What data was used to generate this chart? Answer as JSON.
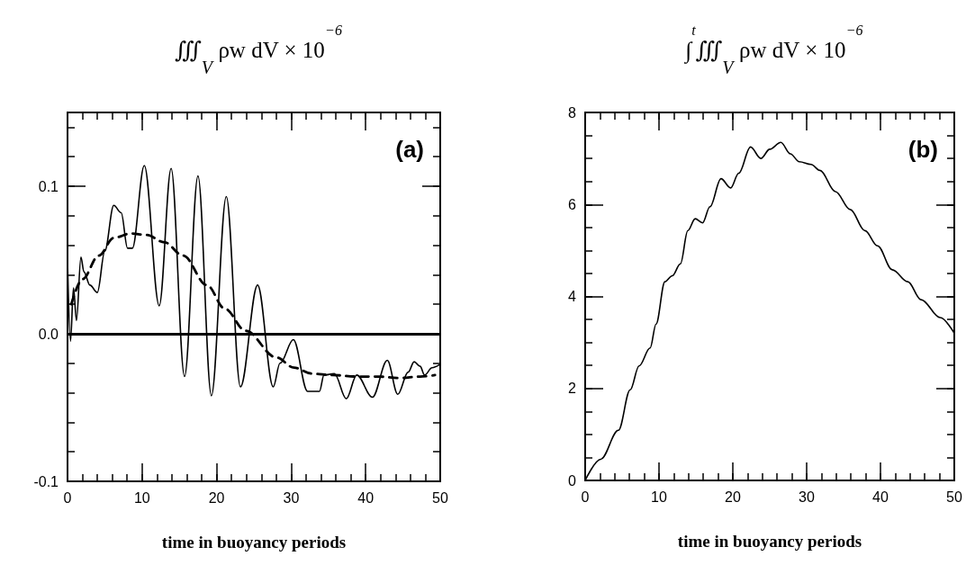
{
  "chart_data": [
    {
      "type": "line",
      "title": "∭$_{V}$ ρw dV × 10$^{−6}$",
      "xlabel": "time in buoyancy periods",
      "annotations": [
        "(a)"
      ],
      "marker": "none",
      "xlim": [
        0,
        50
      ],
      "xticks": [
        0,
        {
          "value": 2,
          "label": null
        },
        {
          "value": 4,
          "label": null
        },
        {
          "value": 6,
          "label": null
        },
        {
          "value": 8,
          "label": null
        },
        10,
        {
          "value": 12,
          "label": null
        },
        {
          "value": 14,
          "label": null
        },
        {
          "value": 16,
          "label": null
        },
        {
          "value": 18,
          "label": null
        },
        20,
        {
          "value": 22,
          "label": null
        },
        {
          "value": 24,
          "label": null
        },
        {
          "value": 26,
          "label": null
        },
        {
          "value": 28,
          "label": null
        },
        30,
        {
          "value": 32,
          "label": null
        },
        {
          "value": 34,
          "label": null
        },
        {
          "value": 36,
          "label": null
        },
        {
          "value": 38,
          "label": null
        },
        40,
        {
          "value": 42,
          "label": null
        },
        {
          "value": 44,
          "label": null
        },
        {
          "value": 46,
          "label": null
        },
        {
          "value": 48,
          "label": null
        },
        50
      ],
      "ylim": [
        -0.1,
        0.15
      ],
      "yticks": [
        -0.1,
        {
          "value": -0.08,
          "label": null
        },
        {
          "value": -0.06,
          "label": null
        },
        {
          "value": -0.04,
          "label": null
        },
        {
          "value": -0.02,
          "label": null
        },
        {
          "value": 0,
          "label": "0.0"
        },
        {
          "value": 0.02,
          "label": null
        },
        {
          "value": 0.04,
          "label": null
        },
        {
          "value": 0.06,
          "label": null
        },
        {
          "value": 0.08,
          "label": null
        },
        0.1,
        {
          "value": 0.12,
          "label": null
        },
        {
          "value": 0.14,
          "label": null
        }
      ],
      "ref_lines": [
        {
          "axis": "y",
          "value": 0,
          "color": "#000000"
        }
      ],
      "series": [
        {
          "color": "#000000",
          "line_style": "solid",
          "x": [
            0,
            0.4,
            0.8,
            1.2,
            1.8,
            2.2,
            3.0,
            4.0,
            5.0,
            6.2,
            7.2,
            8.05,
            8.7,
            10.3,
            12.3,
            13.9,
            15.7,
            17.5,
            19.3,
            21.3,
            23.2,
            25.5,
            27.6,
            28.5,
            30.3,
            32.2,
            33.8,
            34.4,
            35.8,
            37.4,
            38.8,
            40.9,
            42.9,
            44.3,
            45.7,
            46.5,
            47.3,
            47.9,
            48.9,
            49.9
          ],
          "values": [
            0.05,
            -0.005,
            0.031,
            0.009,
            0.052,
            0.042,
            0.033,
            0.028,
            0.056,
            0.087,
            0.082,
            0.058,
            0.058,
            0.114,
            0.019,
            0.112,
            -0.029,
            0.107,
            -0.042,
            0.093,
            -0.036,
            0.033,
            -0.036,
            -0.02,
            -0.004,
            -0.039,
            -0.039,
            -0.028,
            -0.027,
            -0.044,
            -0.028,
            -0.043,
            -0.018,
            -0.041,
            -0.026,
            -0.019,
            -0.022,
            -0.028,
            -0.023,
            -0.021
          ]
        },
        {
          "color": "#000000",
          "line_style": "dashed",
          "x": [
            0.5,
            2,
            4.2,
            6.2,
            8.5,
            10.6,
            13,
            15.5,
            18.7,
            21.1,
            23.9,
            28,
            30.4,
            32.8,
            35.6,
            38.9,
            41.7,
            44.5,
            47.3,
            49.3
          ],
          "values": [
            0.02,
            0.037,
            0.053,
            0.065,
            0.068,
            0.067,
            0.062,
            0.053,
            0.033,
            0.017,
            0.002,
            -0.016,
            -0.023,
            -0.027,
            -0.028,
            -0.029,
            -0.029,
            -0.03,
            -0.029,
            -0.028
          ]
        }
      ]
    },
    {
      "type": "line",
      "title": "∫$^{t}$∭$_{V}$ ρw dV × 10$^{−6}$",
      "xlabel": "time in buoyancy periods",
      "annotations": [
        "(b)"
      ],
      "marker": "none",
      "xlim": [
        0,
        50
      ],
      "xticks": [
        0,
        {
          "value": 2,
          "label": null
        },
        {
          "value": 4,
          "label": null
        },
        {
          "value": 6,
          "label": null
        },
        {
          "value": 8,
          "label": null
        },
        10,
        {
          "value": 12,
          "label": null
        },
        {
          "value": 14,
          "label": null
        },
        {
          "value": 16,
          "label": null
        },
        {
          "value": 18,
          "label": null
        },
        20,
        {
          "value": 22,
          "label": null
        },
        {
          "value": 24,
          "label": null
        },
        {
          "value": 26,
          "label": null
        },
        {
          "value": 28,
          "label": null
        },
        30,
        {
          "value": 32,
          "label": null
        },
        {
          "value": 34,
          "label": null
        },
        {
          "value": 36,
          "label": null
        },
        {
          "value": 38,
          "label": null
        },
        40,
        {
          "value": 42,
          "label": null
        },
        {
          "value": 44,
          "label": null
        },
        {
          "value": 46,
          "label": null
        },
        {
          "value": 48,
          "label": null
        },
        50
      ],
      "ylim": [
        0,
        8
      ],
      "yticks": [
        0,
        {
          "value": 0.5,
          "label": null
        },
        {
          "value": 1,
          "label": null
        },
        {
          "value": 1.5,
          "label": null
        },
        2,
        {
          "value": 2.5,
          "label": null
        },
        {
          "value": 3,
          "label": null
        },
        {
          "value": 3.5,
          "label": null
        },
        4,
        {
          "value": 4.5,
          "label": null
        },
        {
          "value": 5,
          "label": null
        },
        {
          "value": 5.5,
          "label": null
        },
        6,
        {
          "value": 6.5,
          "label": null
        },
        {
          "value": 7,
          "label": null
        },
        {
          "value": 7.5,
          "label": null
        },
        8
      ],
      "series": [
        {
          "color": "#000000",
          "line_style": "solid",
          "x": [
            0,
            2.1,
            4.5,
            6.1,
            7.3,
            8.8,
            9.6,
            10.8,
            11.8,
            12.9,
            13.9,
            14.9,
            15.9,
            16.9,
            18.4,
            19.7,
            20.8,
            22.4,
            23.8,
            25,
            26.5,
            27.8,
            29,
            30.6,
            31.8,
            33.9,
            35.9,
            37.9,
            39.6,
            41.6,
            43.7,
            45.5,
            48.1,
            50
          ],
          "values": [
            0,
            0.46,
            1.09,
            1.97,
            2.49,
            2.88,
            3.4,
            4.32,
            4.45,
            4.71,
            5.43,
            5.69,
            5.6,
            5.95,
            6.56,
            6.36,
            6.68,
            7.25,
            7.0,
            7.2,
            7.35,
            7.1,
            6.93,
            6.87,
            6.74,
            6.28,
            5.89,
            5.43,
            5.1,
            4.58,
            4.32,
            3.93,
            3.54,
            3.2
          ]
        }
      ]
    }
  ]
}
